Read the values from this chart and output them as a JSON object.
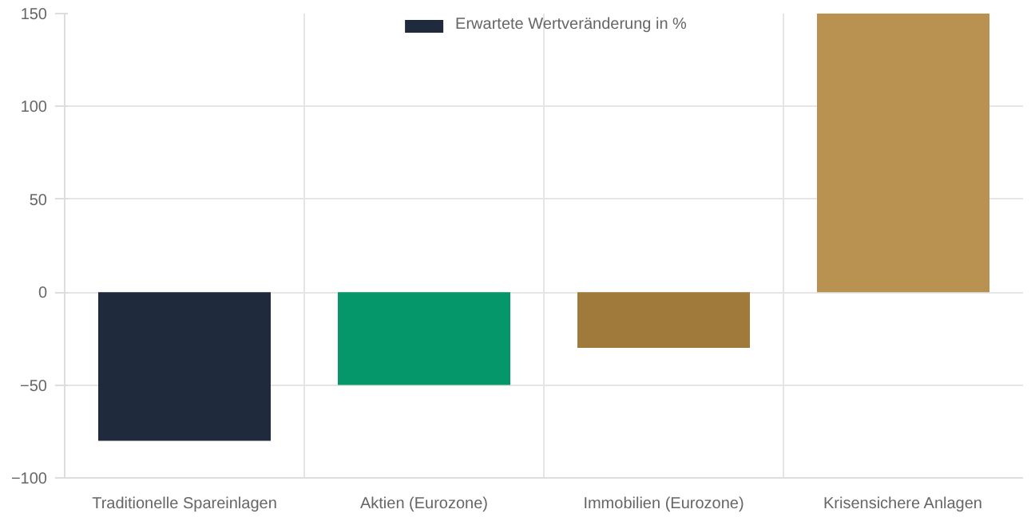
{
  "chart_data": {
    "type": "bar",
    "categories": [
      "Traditionelle Spareinlagen",
      "Aktien (Eurozone)",
      "Immobilien (Eurozone)",
      "Krisensichere Anlagen"
    ],
    "series": [
      {
        "name": "Erwartete Wertveränderung in %",
        "colors": [
          "#1f2a3c",
          "#05966a",
          "#9f7a3a",
          "#b99252"
        ],
        "values": [
          -80,
          -50,
          -30,
          150
        ]
      }
    ],
    "ylim": [
      -100,
      150
    ],
    "yticks": [
      -100,
      -50,
      0,
      50,
      100,
      150
    ],
    "grid": true,
    "legend": "top"
  }
}
